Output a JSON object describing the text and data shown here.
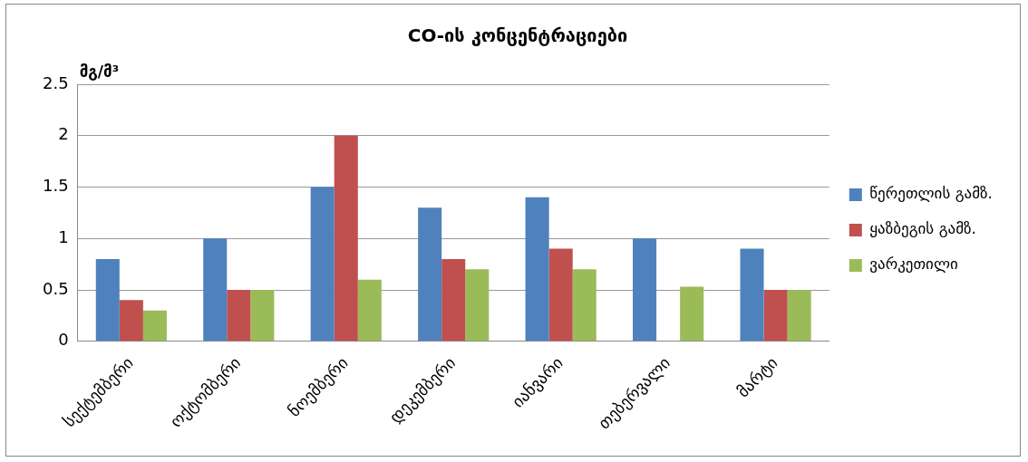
{
  "chart_data": {
    "type": "bar",
    "title": "CO-ის კონცენტრაციები",
    "ylabel": "მგ/მ³",
    "categories": [
      "სექტემბერი",
      "ოქტომბერი",
      "ნოემბერი",
      "დეკემბერი",
      "იანვარი",
      "თებერვალი",
      "მარტი"
    ],
    "series": [
      {
        "name": "წერეთლის გამზ.",
        "color": "#4f81bd",
        "values": [
          0.8,
          1.0,
          1.5,
          1.3,
          1.4,
          1.0,
          0.9
        ]
      },
      {
        "name": "ყაზბეგის გამზ.",
        "color": "#c0504d",
        "values": [
          0.4,
          0.5,
          2.0,
          0.8,
          0.9,
          null,
          0.5
        ]
      },
      {
        "name": "ვარკეთილი",
        "color": "#9bbb59",
        "values": [
          0.3,
          0.5,
          0.6,
          0.7,
          0.7,
          0.53,
          0.5
        ]
      }
    ],
    "ylim": [
      0,
      2.5
    ],
    "yticks": [
      0,
      0.5,
      1,
      1.5,
      2,
      2.5
    ],
    "grid": "y",
    "legend": "right"
  }
}
